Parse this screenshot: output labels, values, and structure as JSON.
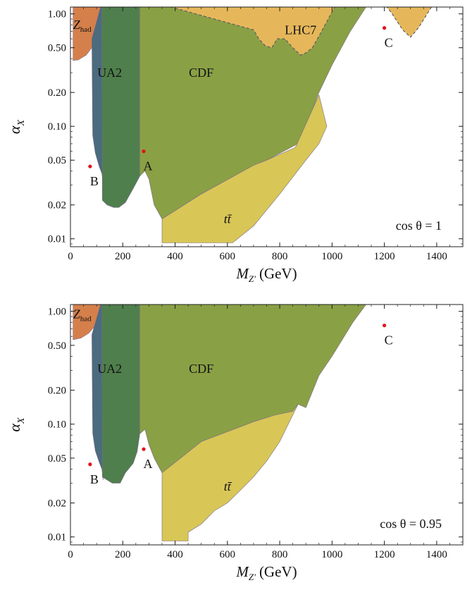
{
  "chart_data": [
    {
      "type": "area",
      "title": "",
      "xlabel": "M",
      "xlabel_sub": "Z'",
      "xlabel_unit": "(GeV)",
      "ylabel": "α",
      "ylabel_sub": "X",
      "xlim": [
        0,
        1500
      ],
      "ylim": [
        0.0085,
        1.15
      ],
      "yscale": "log",
      "x_ticks": [
        0,
        200,
        400,
        600,
        800,
        1000,
        1200,
        1400
      ],
      "x_tick_labels": [
        "0",
        "200",
        "400",
        "600",
        "800",
        "1000",
        "1200",
        "1400"
      ],
      "y_ticks": [
        0.01,
        0.02,
        0.05,
        0.1,
        0.2,
        0.5,
        1.0
      ],
      "y_tick_labels": [
        "0.01",
        "0.02",
        "0.05",
        "0.10",
        "0.20",
        "0.50",
        "1.00"
      ],
      "annotation": "cos θ = 1",
      "regions": [
        {
          "label": "Z_had",
          "color": "#d5804b",
          "points": [
            [
              10,
              1.15
            ],
            [
              120,
              1.15
            ],
            [
              120,
              0.62
            ],
            [
              90,
              0.53
            ],
            [
              60,
              0.43
            ],
            [
              30,
              0.39
            ],
            [
              10,
              0.385
            ]
          ]
        },
        {
          "label": "UA2",
          "color": "#4b6b7e",
          "points": [
            [
              115,
              1.15
            ],
            [
              125,
              1.15
            ],
            [
              125,
              0.032
            ],
            [
              120,
              0.038
            ],
            [
              110,
              0.044
            ],
            [
              95,
              0.058
            ],
            [
              85,
              0.083
            ],
            [
              82,
              0.6
            ]
          ]
        },
        {
          "label": "",
          "color": "#4f7f4c",
          "points": [
            [
              120,
              1.15
            ],
            [
              265,
              1.15
            ],
            [
              265,
              0.036
            ],
            [
              240,
              0.028
            ],
            [
              210,
              0.021
            ],
            [
              185,
              0.019
            ],
            [
              165,
              0.019
            ],
            [
              140,
              0.02
            ],
            [
              122,
              0.022
            ]
          ]
        },
        {
          "label": "CDF",
          "color": "#8aa045",
          "points": [
            [
              265,
              1.15
            ],
            [
              1130,
              1.15
            ],
            [
              1070,
              0.7
            ],
            [
              1000,
              0.35
            ],
            [
              950,
              0.2
            ],
            [
              900,
              0.1
            ],
            [
              880,
              0.075
            ],
            [
              860,
              0.068
            ],
            [
              750,
              0.05
            ],
            [
              700,
              0.045
            ],
            [
              500,
              0.025
            ],
            [
              350,
              0.015
            ],
            [
              320,
              0.02
            ],
            [
              300,
              0.034
            ],
            [
              285,
              0.04
            ],
            [
              275,
              0.038
            ],
            [
              265,
              0.036
            ]
          ]
        },
        {
          "label": "t t̄",
          "color": "#d8c657",
          "points": [
            [
              350,
              0.0092
            ],
            [
              620,
              0.0092
            ],
            [
              700,
              0.013
            ],
            [
              800,
              0.025
            ],
            [
              900,
              0.05
            ],
            [
              950,
              0.07
            ],
            [
              980,
              0.1
            ],
            [
              950,
              0.19
            ],
            [
              860,
              0.065
            ],
            [
              750,
              0.05
            ],
            [
              700,
              0.045
            ],
            [
              500,
              0.025
            ],
            [
              350,
              0.015
            ]
          ]
        },
        {
          "label": "LHC7",
          "color": "#e6b75a",
          "dashed": true,
          "points": [
            [
              385,
              1.15
            ],
            [
              1010,
              1.15
            ],
            [
              960,
              0.7
            ],
            [
              925,
              0.5
            ],
            [
              900,
              0.45
            ],
            [
              880,
              0.43
            ],
            [
              850,
              0.5
            ],
            [
              820,
              0.6
            ],
            [
              790,
              0.6
            ],
            [
              770,
              0.5
            ],
            [
              745,
              0.52
            ],
            [
              720,
              0.6
            ],
            [
              700,
              0.72
            ]
          ]
        },
        {
          "label": "",
          "color": "#e6b75a",
          "dashed": true,
          "points": [
            [
              1210,
              1.15
            ],
            [
              1380,
              1.15
            ],
            [
              1330,
              0.75
            ],
            [
              1300,
              0.62
            ],
            [
              1270,
              0.72
            ],
            [
              1230,
              1.0
            ]
          ]
        }
      ],
      "points": [
        {
          "label": "A",
          "x": 280,
          "y": 0.06
        },
        {
          "label": "B",
          "x": 75,
          "y": 0.044
        },
        {
          "label": "C",
          "x": 1200,
          "y": 0.75
        }
      ],
      "region_labels": [
        {
          "text": "Z",
          "sub": "had",
          "x": 45,
          "y": 0.8
        },
        {
          "text": "UA2",
          "x": 150,
          "y": 0.3
        },
        {
          "text": "CDF",
          "x": 500,
          "y": 0.3
        },
        {
          "text": "LHC7",
          "x": 880,
          "y": 0.72
        },
        {
          "text": "tt̄",
          "x": 600,
          "y": 0.015
        }
      ]
    },
    {
      "type": "area",
      "title": "",
      "xlabel": "M",
      "xlabel_sub": "Z'",
      "xlabel_unit": "(GeV)",
      "ylabel": "α",
      "ylabel_sub": "X",
      "xlim": [
        0,
        1500
      ],
      "ylim": [
        0.0085,
        1.15
      ],
      "yscale": "log",
      "x_ticks": [
        0,
        200,
        400,
        600,
        800,
        1000,
        1200,
        1400
      ],
      "x_tick_labels": [
        "0",
        "200",
        "400",
        "600",
        "800",
        "1000",
        "1200",
        "1400"
      ],
      "y_ticks": [
        0.01,
        0.02,
        0.05,
        0.1,
        0.2,
        0.5,
        1.0
      ],
      "y_tick_labels": [
        "0.01",
        "0.02",
        "0.05",
        "0.10",
        "0.20",
        "0.50",
        "1.00"
      ],
      "annotation": "cos θ = 0.95",
      "regions": [
        {
          "label": "Z_had",
          "color": "#d5804b",
          "points": [
            [
              10,
              1.15
            ],
            [
              120,
              1.15
            ],
            [
              120,
              0.9
            ],
            [
              95,
              0.75
            ],
            [
              70,
              0.64
            ],
            [
              40,
              0.58
            ],
            [
              10,
              0.56
            ]
          ]
        },
        {
          "label": "UA2",
          "color": "#4b6b7e",
          "points": [
            [
              115,
              1.15
            ],
            [
              125,
              1.15
            ],
            [
              125,
              0.032
            ],
            [
              120,
              0.04
            ],
            [
              110,
              0.046
            ],
            [
              95,
              0.058
            ],
            [
              85,
              0.083
            ],
            [
              82,
              0.62
            ]
          ]
        },
        {
          "label": "",
          "color": "#4f7f4c",
          "points": [
            [
              120,
              1.15
            ],
            [
              265,
              1.15
            ],
            [
              265,
              0.082
            ],
            [
              255,
              0.057
            ],
            [
              240,
              0.045
            ],
            [
              210,
              0.037
            ],
            [
              190,
              0.03
            ],
            [
              160,
              0.03
            ],
            [
              140,
              0.032
            ],
            [
              122,
              0.034
            ]
          ]
        },
        {
          "label": "CDF",
          "color": "#8aa045",
          "points": [
            [
              265,
              1.15
            ],
            [
              1130,
              1.15
            ],
            [
              1080,
              0.8
            ],
            [
              1000,
              0.4
            ],
            [
              950,
              0.27
            ],
            [
              900,
              0.14
            ],
            [
              870,
              0.15
            ],
            [
              850,
              0.13
            ],
            [
              780,
              0.12
            ],
            [
              700,
              0.105
            ],
            [
              500,
              0.07
            ],
            [
              350,
              0.037
            ],
            [
              320,
              0.05
            ],
            [
              300,
              0.066
            ],
            [
              285,
              0.09
            ],
            [
              265,
              0.082
            ]
          ]
        },
        {
          "label": "t t̄",
          "color": "#d8c657",
          "points": [
            [
              350,
              0.0092
            ],
            [
              450,
              0.0092
            ],
            [
              450,
              0.011
            ],
            [
              500,
              0.013
            ],
            [
              550,
              0.017
            ],
            [
              600,
              0.02
            ],
            [
              650,
              0.026
            ],
            [
              700,
              0.034
            ],
            [
              750,
              0.047
            ],
            [
              800,
              0.07
            ],
            [
              870,
              0.15
            ],
            [
              850,
              0.13
            ],
            [
              780,
              0.12
            ],
            [
              700,
              0.105
            ],
            [
              500,
              0.07
            ],
            [
              350,
              0.037
            ]
          ]
        }
      ],
      "points": [
        {
          "label": "A",
          "x": 280,
          "y": 0.06
        },
        {
          "label": "B",
          "x": 75,
          "y": 0.044
        },
        {
          "label": "C",
          "x": 1200,
          "y": 0.75
        }
      ],
      "region_labels": [
        {
          "text": "Z",
          "sub": "had",
          "x": 45,
          "y": 0.95
        },
        {
          "text": "UA2",
          "x": 150,
          "y": 0.31
        },
        {
          "text": "CDF",
          "x": 500,
          "y": 0.31
        },
        {
          "text": "tt̄",
          "x": 600,
          "y": 0.028
        }
      ]
    }
  ]
}
